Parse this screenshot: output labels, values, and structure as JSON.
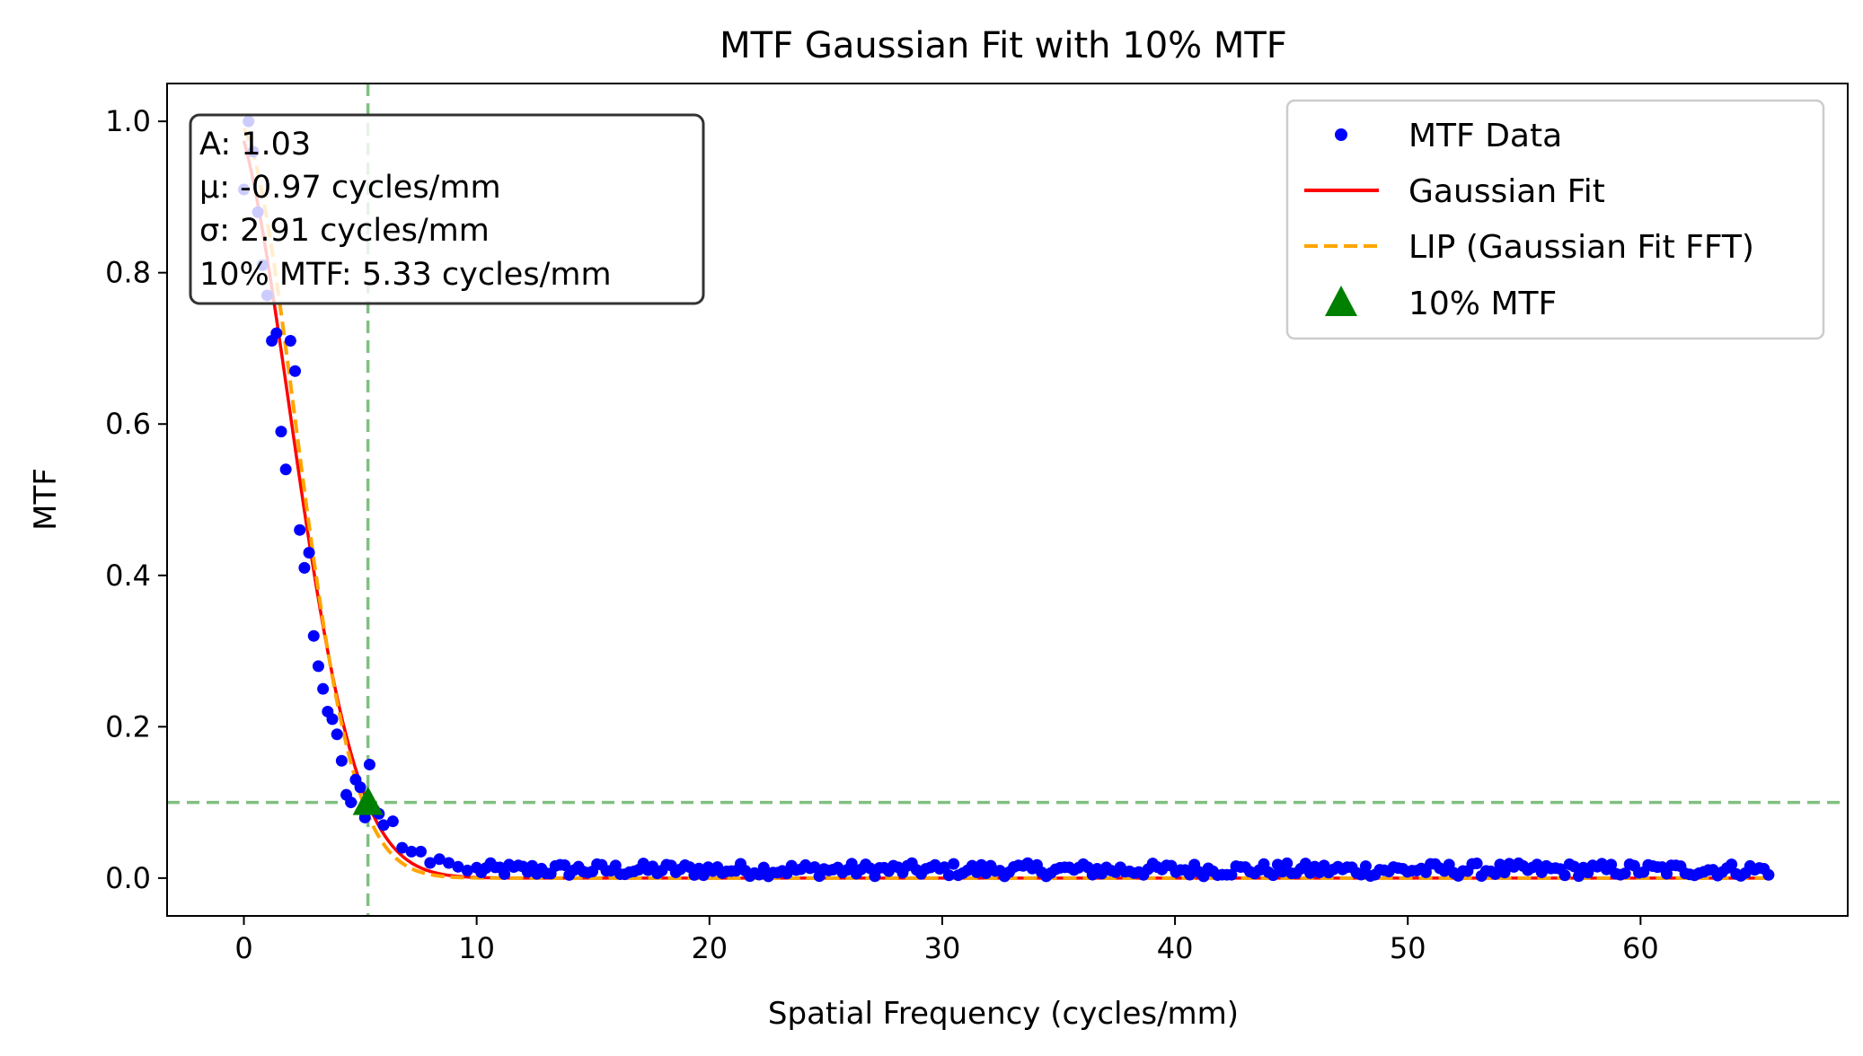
{
  "chart_data": {
    "type": "scatter",
    "title": "MTF Gaussian Fit with 10% MTF",
    "xlabel": "Spatial Frequency (cycles/mm)",
    "ylabel": "MTF",
    "xlim": [
      -3.3,
      68.9
    ],
    "ylim": [
      -0.05,
      1.05
    ],
    "xticks": [
      0,
      10,
      20,
      30,
      40,
      50,
      60
    ],
    "yticks": [
      0.0,
      0.2,
      0.4,
      0.6,
      0.8,
      1.0
    ],
    "grid": false,
    "legend_position": "top-right",
    "series": [
      {
        "name": "MTF Data",
        "kind": "points",
        "color": "#0000ff",
        "x": [
          0.0,
          0.2,
          0.4,
          0.6,
          0.8,
          1.0,
          1.2,
          1.4,
          1.6,
          1.8,
          2.0,
          2.2,
          2.4,
          2.6,
          2.8,
          3.0,
          3.2,
          3.4,
          3.6,
          3.8,
          4.0,
          4.2,
          4.4,
          4.6,
          4.8,
          5.0,
          5.2,
          5.4,
          5.6,
          5.8,
          6.0,
          6.4,
          6.8,
          7.2,
          7.6,
          8.0,
          8.4,
          8.8,
          9.2,
          9.6
        ],
        "y": [
          0.91,
          1.0,
          0.96,
          0.88,
          0.81,
          0.77,
          0.71,
          0.72,
          0.59,
          0.54,
          0.71,
          0.67,
          0.46,
          0.41,
          0.43,
          0.32,
          0.28,
          0.25,
          0.22,
          0.21,
          0.19,
          0.155,
          0.11,
          0.1,
          0.13,
          0.12,
          0.08,
          0.15,
          0.09,
          0.085,
          0.07,
          0.075,
          0.04,
          0.035,
          0.035,
          0.02,
          0.025,
          0.02,
          0.015,
          0.01
        ],
        "noise_floor": {
          "x_range": [
            10,
            65.5
          ],
          "count": 280,
          "y_range": [
            0.0,
            0.022
          ],
          "mean": 0.012
        }
      },
      {
        "name": "Gaussian Fit",
        "kind": "line",
        "color": "#ff0000",
        "A": 1.03,
        "mu": -0.97,
        "sigma": 2.91
      },
      {
        "name": "LIP (Gaussian Fit FFT)",
        "kind": "dashed-line",
        "color": "#ffa500",
        "A": 1.0,
        "mu": -0.35,
        "sigma": 2.55
      },
      {
        "name": "10% MTF",
        "kind": "marker",
        "marker": "triangle",
        "color": "#008000",
        "x": 5.33,
        "y": 0.1
      }
    ],
    "reference_lines": {
      "color": "#80c080",
      "vertical_x": 5.33,
      "horizontal_y": 0.1
    },
    "annotation": {
      "lines": [
        "A: 1.03",
        "μ: -0.97 cycles/mm",
        "σ: 2.91 cycles/mm",
        "10% MTF: 5.33 cycles/mm"
      ]
    }
  }
}
